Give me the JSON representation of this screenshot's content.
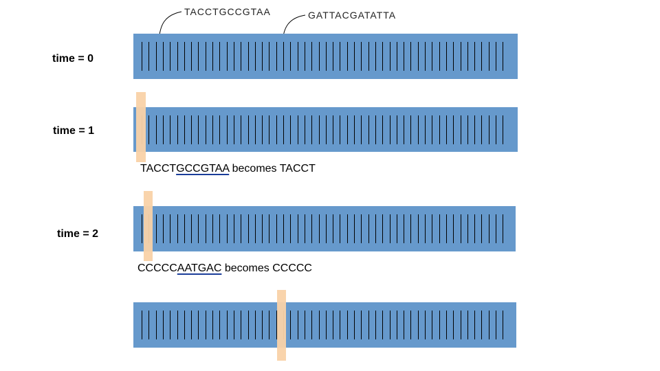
{
  "sequences": {
    "left": "TACCTGCCGTAA",
    "right": "GATTACGATATTA"
  },
  "rows": [
    {
      "time_label": "time = 0"
    },
    {
      "time_label": "time = 1"
    },
    {
      "time_label": "time = 2"
    },
    {
      "time_label": ""
    }
  ],
  "captions": [
    {
      "kept": "TACCT",
      "removed": "GCCGTAA",
      "rest": " becomes TACCT"
    },
    {
      "kept": "CCCCC",
      "removed": "AATGAC",
      "rest": " becomes CCCCC"
    }
  ],
  "colors": {
    "strip": "#6699cc",
    "highlight": "#f9d2a8",
    "underline": "#1a3d99"
  }
}
